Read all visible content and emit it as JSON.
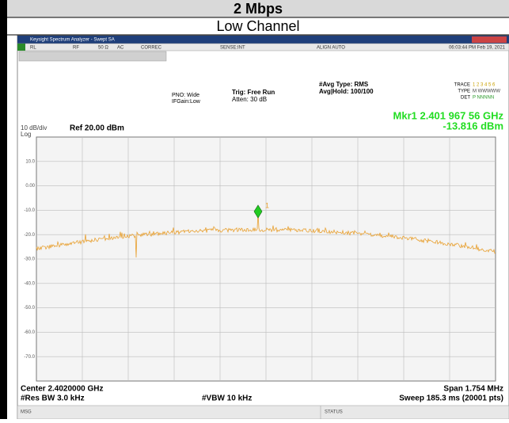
{
  "header": {
    "title": "2 Mbps",
    "subtitle": "Low Channel"
  },
  "analyzer": {
    "window_title": "Keysight Spectrum Analyzer - Swept SA",
    "status_bar": [
      "RL",
      "RF",
      "50 Ω",
      "AC",
      "CORREC",
      "SENSE:INT",
      "ALIGN AUTO",
      "06:03:44 PM Feb 19, 2021"
    ],
    "settings": {
      "pno": "PNO: Wide",
      "ifgain": "IFGain:Low",
      "trig": "Trig: Free Run",
      "atten": "Atten: 30 dB",
      "avg_type": "#Avg Type: RMS",
      "avg_hold": "Avg|Hold: 100/100"
    },
    "trace_panel": {
      "trace": "TRACE",
      "trace_nums": "1 2 3 4 5 6",
      "type": "TYPE",
      "type_val": "M WWWWW",
      "det": "DET",
      "det_val": "P NNNNN"
    },
    "marker": {
      "freq": "Mkr1 2.401 967 56 GHz",
      "level": "-13.816 dBm",
      "label": "1"
    },
    "scale": {
      "div": "10 dB/div",
      "log": "Log",
      "ref": "Ref 20.00 dBm"
    },
    "y_labels": [
      "10.0",
      "0.00",
      "-10.0",
      "-20.0",
      "-30.0",
      "-40.0",
      "-50.0",
      "-60.0",
      "-70.0"
    ],
    "footer": {
      "center": "Center 2.4020000 GHz",
      "rbw": "#Res BW 3.0 kHz",
      "vbw": "#VBW 10 kHz",
      "span": "Span 1.754 MHz",
      "sweep": "Sweep  185.3 ms (20001 pts)"
    },
    "bottom_bar": {
      "msg": "MSG",
      "status": "STATUS"
    }
  }
}
